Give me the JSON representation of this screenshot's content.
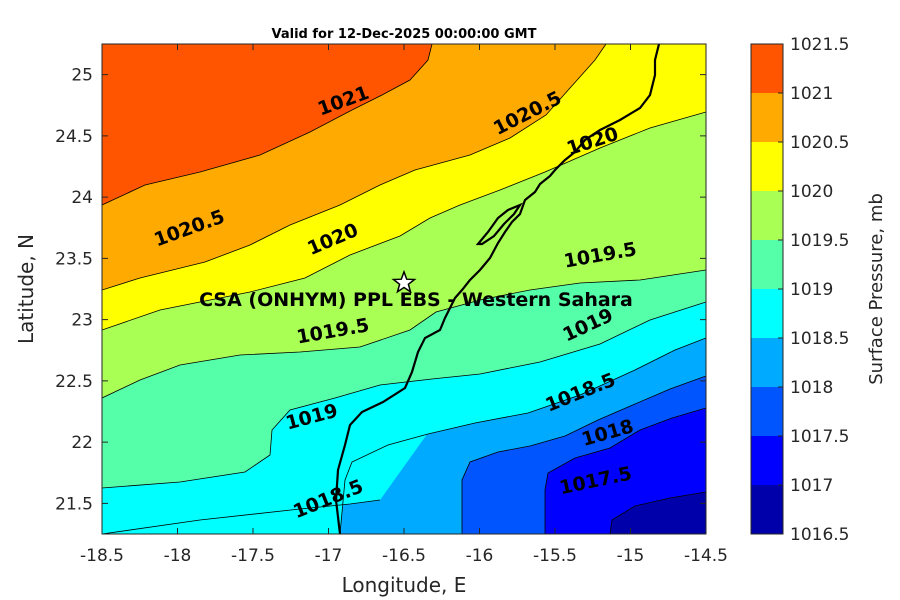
{
  "chart_data": {
    "type": "filled-contour",
    "title": "Valid for 12-Dec-2025 00:00:00 GMT",
    "xlabel": "Longitude, E",
    "ylabel": "Latitude, N",
    "xlim": [
      -18.5,
      -14.5
    ],
    "ylim": [
      21.25,
      25.25
    ],
    "x_ticks": [
      -18.5,
      -18,
      -17.5,
      -17,
      -16.5,
      -16,
      -15.5,
      -15,
      -14.5
    ],
    "x_tick_labels": [
      "-18.5",
      "-18",
      "-17.5",
      "-17",
      "-16.5",
      "-16",
      "-15.5",
      "-15",
      "-14.5"
    ],
    "y_ticks": [
      21.5,
      22,
      22.5,
      23,
      23.5,
      24,
      24.5,
      25
    ],
    "y_tick_labels": [
      "21.5",
      "22",
      "22.5",
      "23",
      "23.5",
      "24",
      "24.5",
      "25"
    ],
    "colorbar": {
      "label": "Surface Pressure, mb",
      "levels": [
        1016.5,
        1017,
        1017.5,
        1018,
        1018.5,
        1019,
        1019.5,
        1020,
        1020.5,
        1021,
        1021.5
      ],
      "tick_labels": [
        "1016.5",
        "1017",
        "1017.5",
        "1018",
        "1018.5",
        "1019",
        "1019.5",
        "1020",
        "1020.5",
        "1021",
        "1021.5"
      ],
      "colors": [
        "#0000aa",
        "#0000ff",
        "#0055ff",
        "#00aaff",
        "#00ffff",
        "#55ffaa",
        "#aaff55",
        "#ffff00",
        "#ffaa00",
        "#ff5500",
        "#ff0000"
      ]
    },
    "contour_labels": [
      {
        "text": "1021",
        "lon": -16.9,
        "lat": 24.78,
        "angle": -20
      },
      {
        "text": "1020.5",
        "lon": -15.68,
        "lat": 24.68,
        "angle": -27
      },
      {
        "text": "1020",
        "lon": -15.25,
        "lat": 24.45,
        "angle": -18
      },
      {
        "text": "1020.5",
        "lon": -17.92,
        "lat": 23.74,
        "angle": -20
      },
      {
        "text": "1020",
        "lon": -16.97,
        "lat": 23.65,
        "angle": -23
      },
      {
        "text": "1019.5",
        "lon": -15.2,
        "lat": 23.52,
        "angle": -10
      },
      {
        "text": "1019",
        "lon": -15.28,
        "lat": 22.95,
        "angle": -25
      },
      {
        "text": "1019.5",
        "lon": -16.97,
        "lat": 22.9,
        "angle": -10
      },
      {
        "text": "1019",
        "lon": -17.11,
        "lat": 22.2,
        "angle": -15
      },
      {
        "text": "1018.5",
        "lon": -15.33,
        "lat": 22.4,
        "angle": -22
      },
      {
        "text": "1018",
        "lon": -15.15,
        "lat": 22.07,
        "angle": -16
      },
      {
        "text": "1017.5",
        "lon": -15.23,
        "lat": 21.68,
        "angle": -12
      },
      {
        "text": "1018.5",
        "lon": -17.0,
        "lat": 21.53,
        "angle": -22
      }
    ],
    "site": {
      "label": "CSA (ONHYM) PPL EBS  - Western Sahara",
      "lon": -16.5,
      "lat": 23.3
    }
  }
}
